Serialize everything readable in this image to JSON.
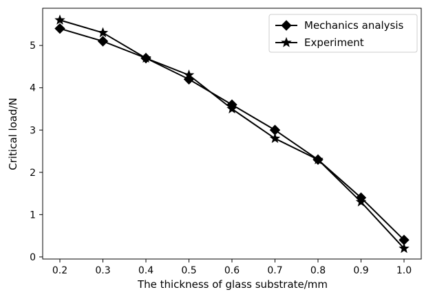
{
  "chart_data": {
    "type": "line",
    "title": "",
    "xlabel": "The thickness of glass substrate/mm",
    "ylabel": "Critical load/N",
    "x": [
      0.2,
      0.3,
      0.4,
      0.5,
      0.6,
      0.7,
      0.8,
      0.9,
      1.0
    ],
    "x_tick_labels": [
      "0.2",
      "0.3",
      "0.4",
      "0.5",
      "0.6",
      "0.7",
      "0.8",
      "0.9",
      "1.0"
    ],
    "y_tick_labels": [
      "0",
      "1",
      "2",
      "3",
      "4",
      "5"
    ],
    "y_ticks": [
      0,
      1,
      2,
      3,
      4,
      5
    ],
    "xlim": [
      0.16,
      1.04
    ],
    "ylim": [
      -0.05,
      5.88
    ],
    "grid": false,
    "legend_position": "top-right",
    "series": [
      {
        "name": "Mechanics analysis",
        "marker": "diamond",
        "color": "#000000",
        "values": [
          5.4,
          5.1,
          4.7,
          4.2,
          3.6,
          3.0,
          2.3,
          1.4,
          0.4
        ]
      },
      {
        "name": "Experiment",
        "marker": "star",
        "color": "#000000",
        "values": [
          5.6,
          5.3,
          4.7,
          4.3,
          3.5,
          2.8,
          2.3,
          1.3,
          0.2
        ]
      }
    ]
  }
}
